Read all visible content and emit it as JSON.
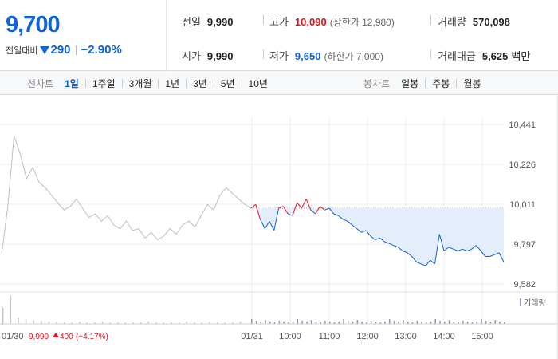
{
  "summary": {
    "price": "9,700",
    "change_label": "전일대비",
    "change": "290",
    "change_rate": "−2.90%"
  },
  "stats": {
    "prev_label": "전일",
    "prev": "9,990",
    "high_label": "고가",
    "high": "10,090",
    "upper_limit": "(상한가 12,980)",
    "volume_label": "거래량",
    "volume": "570,098",
    "open_label": "시가",
    "open": "9,990",
    "low_label": "저가",
    "low": "9,650",
    "lower_limit": "(하한가 7,000)",
    "amount_label": "거래대금",
    "amount": "5,625",
    "amount_unit": "백만"
  },
  "tabs": {
    "line_caption": "선차트",
    "line": [
      "1일",
      "1주일",
      "3개월",
      "1년",
      "3년",
      "5년",
      "10년"
    ],
    "candle_caption": "봉차트",
    "candle": [
      "일봉",
      "주봉",
      "월봉"
    ]
  },
  "colors": {
    "blue": "#1061d6",
    "red": "#e0151f",
    "grid": "#ececec",
    "prev_line": "#bfbfbf",
    "fill": "#e3edfb",
    "volume_legend": "#9b8fd6"
  },
  "chart_data": {
    "type": "line",
    "y_ticks": [
      "10,441",
      "10,226",
      "10,011",
      "9,797",
      "9,582"
    ],
    "ylim": [
      9582,
      10441
    ],
    "reference": 9990,
    "volume_label": "거래량",
    "x_ticks": [
      "01/30",
      "01/31",
      "10:00",
      "11:00",
      "12:00",
      "13:00",
      "14:00",
      "15:00"
    ],
    "prev_day": {
      "date": "01/30",
      "close": "9,990",
      "change": "400",
      "change_rate": "(+4.17%)",
      "values": [
        9740,
        10000,
        10380,
        10280,
        10150,
        10210,
        10130,
        10100,
        10060,
        10020,
        9980,
        10000,
        10040,
        9990,
        9940,
        9960,
        9920,
        9950,
        9900,
        9880,
        9920,
        9870,
        9880,
        9830,
        9860,
        9820,
        9840,
        9880,
        9850,
        9900,
        9920,
        9890,
        9950,
        10010,
        9980,
        10060,
        10100,
        10070,
        10040,
        10010,
        9990
      ]
    },
    "today": {
      "date": "01/31",
      "values": [
        9990,
        10010,
        9930,
        9880,
        9920,
        9870,
        9990,
        10000,
        9960,
        9950,
        10020,
        9990,
        10040,
        9980,
        9960,
        10000,
        9980,
        9990,
        9960,
        9950,
        9930,
        9920,
        9900,
        9880,
        9860,
        9870,
        9840,
        9820,
        9830,
        9810,
        9800,
        9790,
        9780,
        9760,
        9750,
        9730,
        9700,
        9690,
        9680,
        9710,
        9690,
        9850,
        9760,
        9780,
        9770,
        9760,
        9770,
        9760,
        9770,
        9790,
        9760,
        9730,
        9730,
        9740,
        9750,
        9700
      ]
    }
  }
}
